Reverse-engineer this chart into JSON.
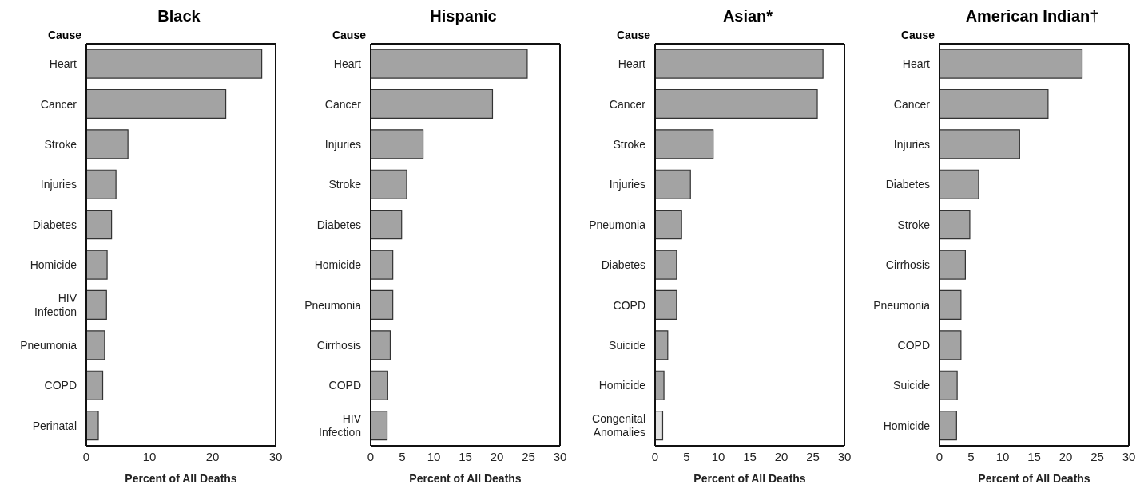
{
  "chart_data": [
    {
      "type": "bar",
      "orientation": "horizontal",
      "title": "Black",
      "ylabel": "Cause",
      "xlabel": "Percent of All Deaths",
      "categories": [
        "Heart",
        "Cancer",
        "Stroke",
        "Injuries",
        "Diabetes",
        "Homicide",
        "HIV Infection",
        "Pneumonia",
        "COPD",
        "Perinatal"
      ],
      "values": [
        27.8,
        22.1,
        6.6,
        4.7,
        4.0,
        3.3,
        3.2,
        2.9,
        2.6,
        1.9
      ],
      "color": "#a3a3a3",
      "xlim": [
        0,
        30
      ],
      "xticks": [
        0,
        10,
        20,
        30
      ]
    },
    {
      "type": "bar",
      "orientation": "horizontal",
      "title": "Hispanic",
      "ylabel": "Cause",
      "xlabel": "Percent of All Deaths",
      "categories": [
        "Heart",
        "Cancer",
        "Injuries",
        "Stroke",
        "Diabetes",
        "Homicide",
        "Pneumonia",
        "Cirrhosis",
        "COPD",
        "HIV Infection"
      ],
      "values": [
        24.8,
        19.3,
        8.3,
        5.7,
        4.9,
        3.5,
        3.5,
        3.1,
        2.7,
        2.6
      ],
      "color": "#a3a3a3",
      "xlim": [
        0,
        30
      ],
      "xticks": [
        0,
        5,
        10,
        15,
        20,
        25,
        30
      ]
    },
    {
      "type": "bar",
      "orientation": "horizontal",
      "title": "Asian*",
      "ylabel": "Cause",
      "xlabel": "Percent of All Deaths",
      "categories": [
        "Heart",
        "Cancer",
        "Stroke",
        "Injuries",
        "Pneumonia",
        "Diabetes",
        "COPD",
        "Suicide",
        "Homicide",
        "Congenital Anomalies"
      ],
      "values": [
        26.6,
        25.7,
        9.2,
        5.6,
        4.2,
        3.4,
        3.4,
        2.0,
        1.4,
        1.2
      ],
      "colors": [
        "#a3a3a3",
        "#a3a3a3",
        "#a3a3a3",
        "#a3a3a3",
        "#a3a3a3",
        "#a3a3a3",
        "#a3a3a3",
        "#a3a3a3",
        "#a3a3a3",
        "#e0e0e0"
      ],
      "xlim": [
        0,
        30
      ],
      "xticks": [
        0,
        5,
        10,
        15,
        20,
        25,
        30
      ]
    },
    {
      "type": "bar",
      "orientation": "horizontal",
      "title": "American Indian†",
      "ylabel": "Cause",
      "xlabel": "Percent of All Deaths",
      "categories": [
        "Heart",
        "Cancer",
        "Injuries",
        "Diabetes",
        "Stroke",
        "Cirrhosis",
        "Pneumonia",
        "COPD",
        "Suicide",
        "Homicide"
      ],
      "values": [
        22.6,
        17.2,
        12.7,
        6.2,
        4.8,
        4.1,
        3.4,
        3.4,
        2.8,
        2.7
      ],
      "color": "#a3a3a3",
      "xlim": [
        0,
        30
      ],
      "xticks": [
        0,
        5,
        10,
        15,
        20,
        25,
        30
      ]
    }
  ]
}
